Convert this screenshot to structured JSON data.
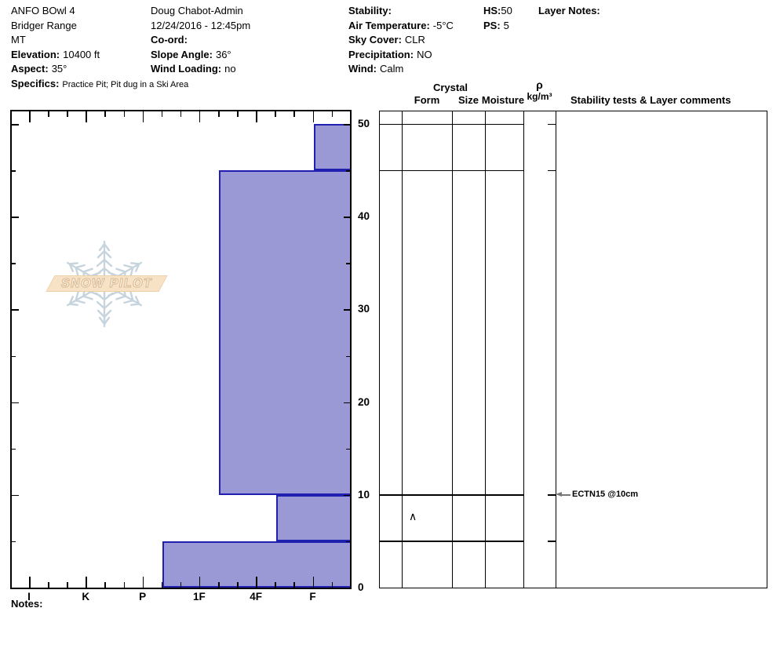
{
  "header": {
    "col1": {
      "pit_name": "ANFO BOwl 4",
      "range": "Bridger Range",
      "state": "MT",
      "elevation_label": "Elevation:",
      "elevation_value": "10400 ft",
      "aspect_label": "Aspect:",
      "aspect_value": "35°",
      "specifics_label": "Specifics:",
      "specifics_value": "Practice Pit; Pit dug in a Ski Area"
    },
    "col2": {
      "observer": "Doug Chabot-Admin",
      "datetime": "12/24/2016 - 12:45pm",
      "coord_label": "Co-ord:",
      "coord_value": "",
      "slope_angle_label": "Slope Angle:",
      "slope_angle_value": "36°",
      "wind_loading_label": "Wind Loading:",
      "wind_loading_value": "no"
    },
    "col3": {
      "stability_label": "Stability:",
      "stability_value": "",
      "air_temp_label": "Air Temperature:",
      "air_temp_value": "-5°C",
      "sky_cover_label": "Sky Cover:",
      "sky_cover_value": "CLR",
      "precip_label": "Precipitation:",
      "precip_value": "NO",
      "wind_label": "Wind:",
      "wind_value": "Calm"
    },
    "col4": {
      "hs_label": "HS:",
      "hs_value": "50",
      "ps_label": "PS:",
      "ps_value": "5"
    },
    "col5": {
      "layer_notes_label": "Layer Notes:"
    }
  },
  "logo": {
    "text": "SNOW PILOT"
  },
  "chart_data": {
    "type": "bar",
    "orientation": "horizontal-hardness-profile",
    "hardness_categories": [
      "I",
      "K",
      "P",
      "1F",
      "4F",
      "F"
    ],
    "depth_axis_ticks": [
      50,
      40,
      30,
      20,
      10,
      0
    ],
    "depth_unit": "cm",
    "ylim": [
      0,
      50
    ],
    "layers": [
      {
        "top_cm": 50,
        "bottom_cm": 45,
        "hardness": "F",
        "hardness_pos": 5.02
      },
      {
        "top_cm": 45,
        "bottom_cm": 10,
        "hardness": "1F-4F",
        "hardness_pos": 3.35
      },
      {
        "top_cm": 10,
        "bottom_cm": 5,
        "hardness": "4F-F",
        "hardness_pos": 4.35,
        "grain_form_symbol": "∧"
      },
      {
        "top_cm": 5,
        "bottom_cm": 0,
        "hardness": "P-1F",
        "hardness_pos": 2.35
      }
    ],
    "bar_color": "#9a99d6",
    "layer_line_color": "#2020b0"
  },
  "right_panel": {
    "headers": {
      "crystal": "Crystal",
      "form": "Form",
      "size": "Size",
      "moisture": "Moisture",
      "rho": "ρ",
      "rho_units": "kg/m³",
      "stability": "Stability tests & Layer comments"
    },
    "annotations": [
      {
        "depth_cm": 10,
        "text": "ECTN15 @10cm"
      }
    ]
  },
  "footer": {
    "notes_label": "Notes:"
  }
}
